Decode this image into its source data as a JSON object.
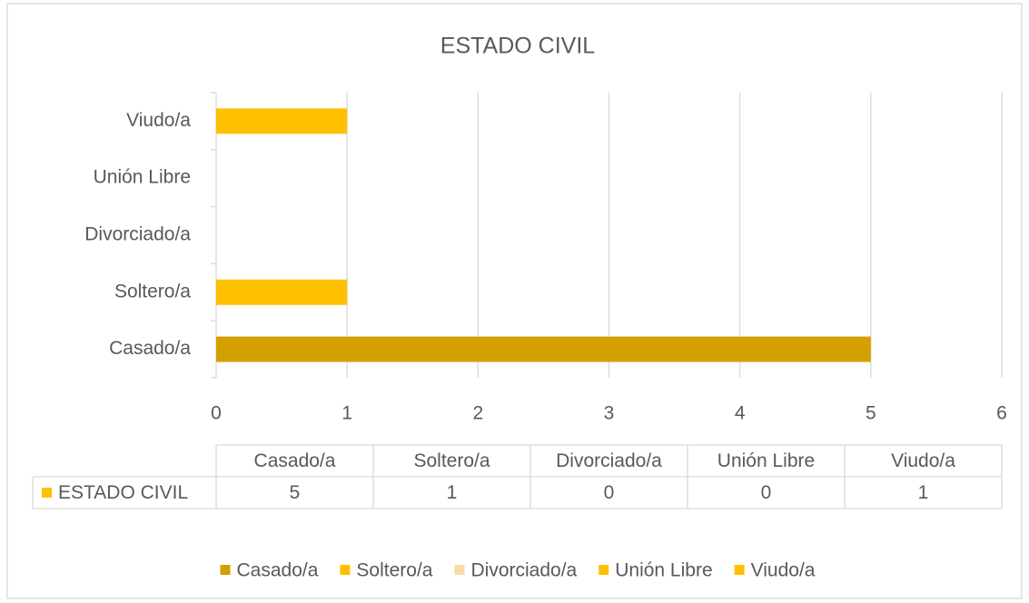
{
  "chart_data": {
    "type": "barh",
    "title": "ESTADO CIVIL",
    "categories": [
      "Casado/a",
      "Soltero/a",
      "Divorciado/a",
      "Unión Libre",
      "Viudo/a"
    ],
    "series": [
      {
        "name": "ESTADO CIVIL",
        "values": [
          5,
          1,
          0,
          0,
          1
        ]
      }
    ],
    "colors": [
      "#d4a000",
      "#ffc000",
      "#fdd9a8",
      "#ffc000",
      "#ffc000"
    ],
    "xlim": [
      0,
      6
    ],
    "xticks": [
      0,
      1,
      2,
      3,
      4,
      5,
      6
    ],
    "grid": true,
    "legend": "bottom",
    "data_table": true
  }
}
